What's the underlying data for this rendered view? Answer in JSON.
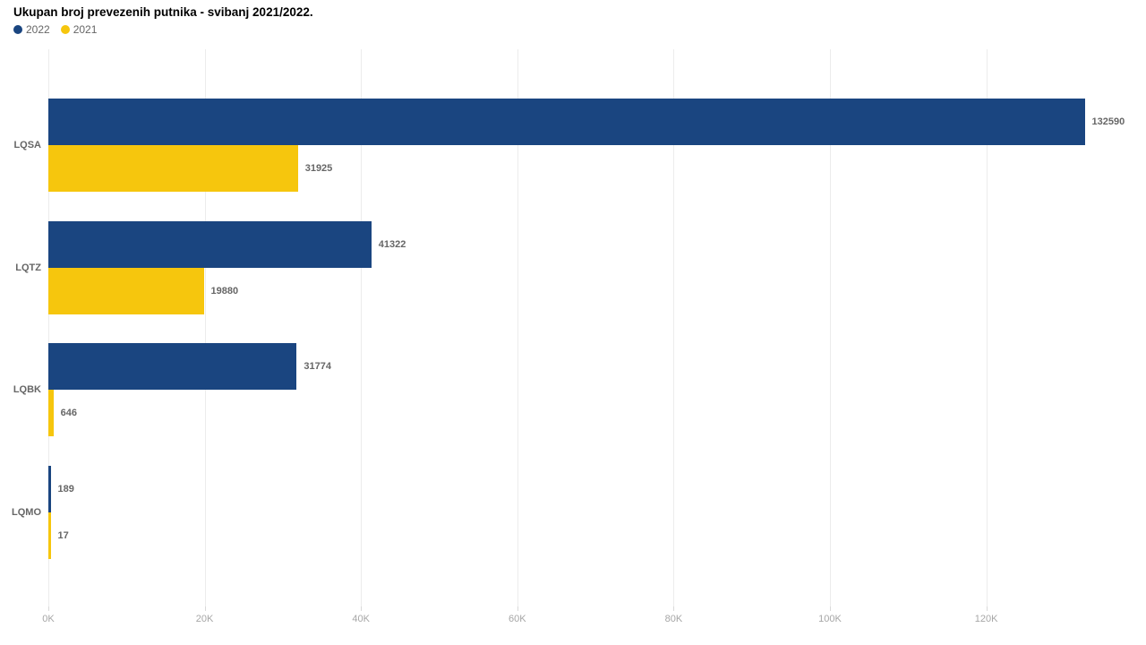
{
  "chart_data": {
    "type": "bar",
    "orientation": "horizontal",
    "title": "Ukupan broj prevezenih putnika - svibanj 2021/2022.",
    "categories": [
      "LQSA",
      "LQTZ",
      "LQBK",
      "LQMO"
    ],
    "series": [
      {
        "name": "2022",
        "color": "#1A4580",
        "values": [
          132590,
          41322,
          31774,
          189
        ]
      },
      {
        "name": "2021",
        "color": "#F6C60D",
        "values": [
          31925,
          19880,
          646,
          17
        ]
      }
    ],
    "data_labels_shown": true,
    "xlabel": "",
    "ylabel": "",
    "x_axis": {
      "tick_labels": [
        "0K",
        "20K",
        "40K",
        "60K",
        "80K",
        "100K",
        "120K"
      ],
      "tick_values": [
        0,
        20000,
        40000,
        60000,
        80000,
        100000,
        120000
      ],
      "min": 0,
      "max": 140000
    },
    "grid": true,
    "legend_position": "top-left",
    "colors": {
      "background": "#ffffff",
      "title": "#000000",
      "gridline": "#ececec",
      "tick_label": "#a6a6a6",
      "value_label": "#666666",
      "category_label": "#666666"
    }
  }
}
